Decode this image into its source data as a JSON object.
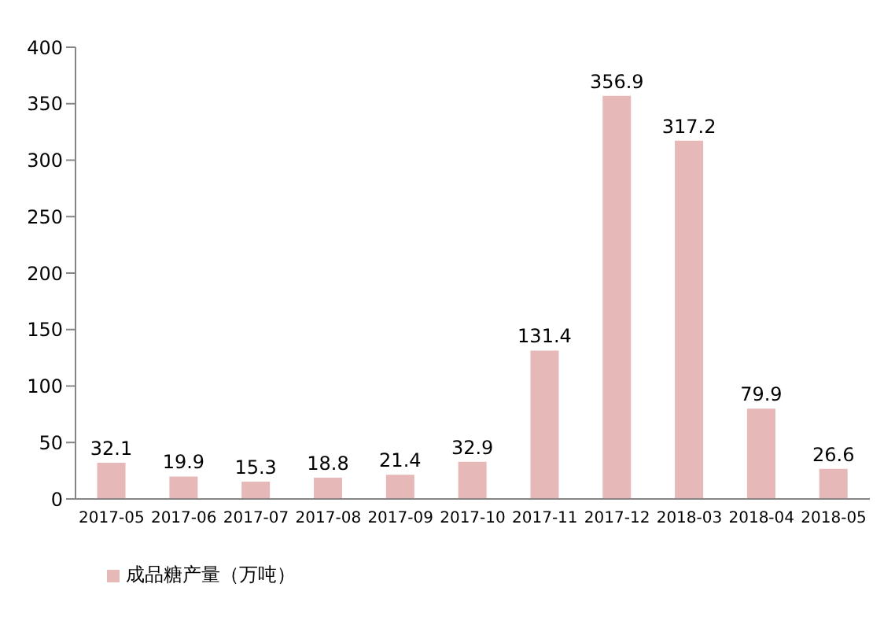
{
  "chart_data": {
    "type": "bar",
    "categories": [
      "2017-05",
      "2017-06",
      "2017-07",
      "2017-08",
      "2017-09",
      "2017-10",
      "2017-11",
      "2017-12",
      "2018-03",
      "2018-04",
      "2018-05"
    ],
    "series": [
      {
        "name": "成品糖产量（万吨）",
        "color": "#e6b8b7",
        "values": [
          32.1,
          19.9,
          15.3,
          18.8,
          21.4,
          32.9,
          131.4,
          356.9,
          317.2,
          79.9,
          26.6
        ]
      }
    ],
    "ylim": [
      0,
      400
    ],
    "yticks": [
      0,
      50,
      100,
      150,
      200,
      250,
      300,
      350,
      400
    ],
    "data_labels": true,
    "grid": false,
    "legend": "bottom left"
  }
}
